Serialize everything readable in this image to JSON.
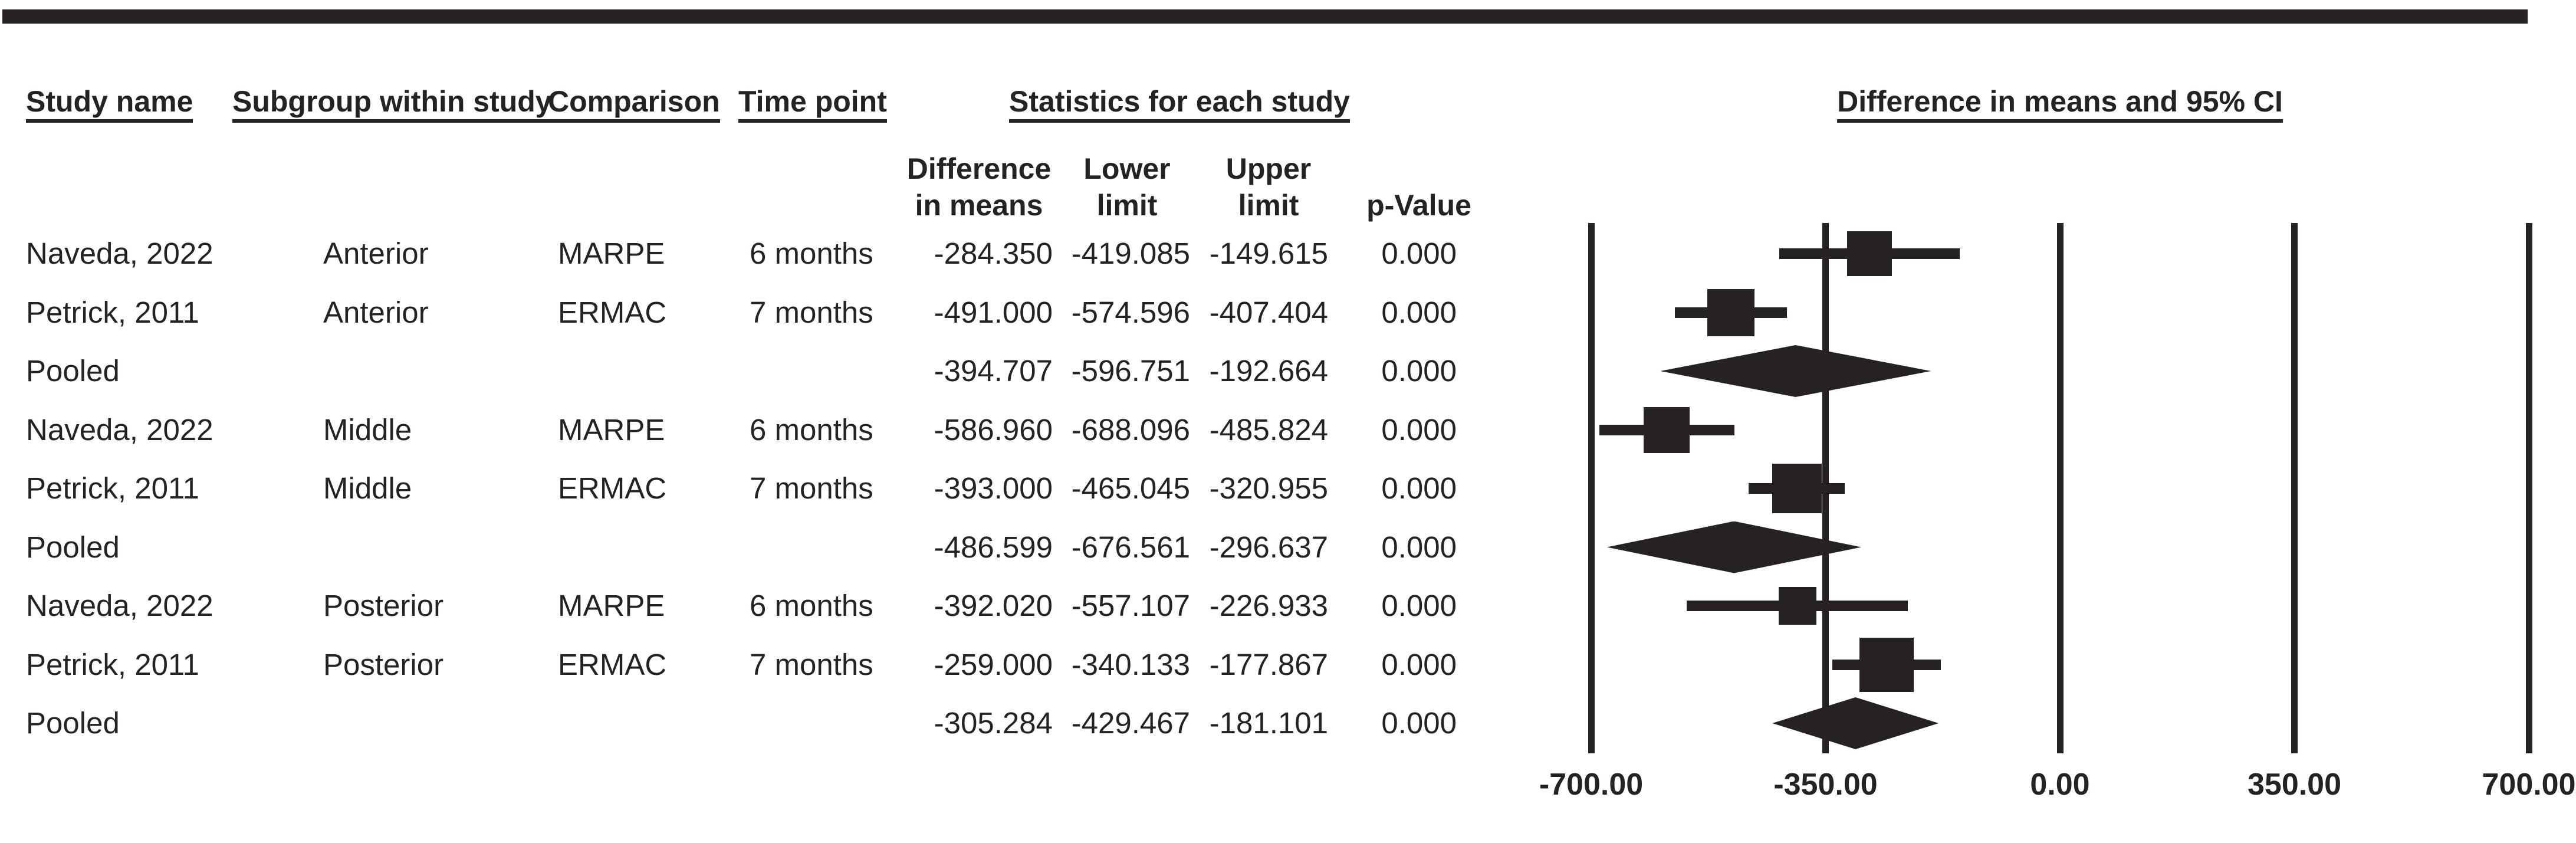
{
  "page": {
    "background": "#ffffff",
    "ink_color": "#262223",
    "top_bar_color": "#272325"
  },
  "chart_data": {
    "type": "forest",
    "title_left_group": "Statistics for each study",
    "title_right_group": "Difference in means and 95% CI",
    "columns": {
      "study": "Study name",
      "subgroup": "Subgroup within study",
      "comparison": "Comparison",
      "time_point": "Time point",
      "diff_line1": "Difference",
      "diff_line2": "in means",
      "lower_line1": "Lower",
      "lower_line2": "limit",
      "upper_line1": "Upper",
      "upper_line2": "limit",
      "p_value": "p-Value"
    },
    "x_axis": {
      "min": -700,
      "max": 700,
      "ticks": [
        -700,
        -350,
        0,
        350,
        700
      ],
      "tick_labels": [
        "-700.00",
        "-350.00",
        "0.00",
        "350.00",
        "700.00"
      ],
      "gridlines": true
    },
    "rows": [
      {
        "type": "study",
        "study": "Naveda, 2022",
        "subgroup": "Anterior",
        "comparison": "MARPE",
        "time_point": "6 months",
        "diff": "-284.350",
        "lower": "-419.085",
        "upper": "-149.615",
        "p": "0.000",
        "marker_size": 76
      },
      {
        "type": "study",
        "study": "Petrick, 2011",
        "subgroup": "Anterior",
        "comparison": "ERMAC",
        "time_point": "7 months",
        "diff": "-491.000",
        "lower": "-574.596",
        "upper": "-407.404",
        "p": "0.000",
        "marker_size": 80
      },
      {
        "type": "pooled",
        "study": "Pooled",
        "subgroup": "",
        "comparison": "",
        "time_point": "",
        "diff": "-394.707",
        "lower": "-596.751",
        "upper": "-192.664",
        "p": "0.000"
      },
      {
        "type": "study",
        "study": "Naveda, 2022",
        "subgroup": "Middle",
        "comparison": "MARPE",
        "time_point": "6 months",
        "diff": "-586.960",
        "lower": "-688.096",
        "upper": "-485.824",
        "p": "0.000",
        "marker_size": 78
      },
      {
        "type": "study",
        "study": "Petrick, 2011",
        "subgroup": "Middle",
        "comparison": "ERMAC",
        "time_point": "7 months",
        "diff": "-393.000",
        "lower": "-465.045",
        "upper": "-320.955",
        "p": "0.000",
        "marker_size": 84
      },
      {
        "type": "pooled",
        "study": "Pooled",
        "subgroup": "",
        "comparison": "",
        "time_point": "",
        "diff": "-486.599",
        "lower": "-676.561",
        "upper": "-296.637",
        "p": "0.000"
      },
      {
        "type": "study",
        "study": "Naveda, 2022",
        "subgroup": "Posterior",
        "comparison": "MARPE",
        "time_point": "6 months",
        "diff": "-392.020",
        "lower": "-557.107",
        "upper": "-226.933",
        "p": "0.000",
        "marker_size": 64
      },
      {
        "type": "study",
        "study": "Petrick, 2011",
        "subgroup": "Posterior",
        "comparison": "ERMAC",
        "time_point": "7 months",
        "diff": "-259.000",
        "lower": "-340.133",
        "upper": "-177.867",
        "p": "0.000",
        "marker_size": 92
      },
      {
        "type": "pooled",
        "study": "Pooled",
        "subgroup": "",
        "comparison": "",
        "time_point": "",
        "diff": "-305.284",
        "lower": "-429.467",
        "upper": "-181.101",
        "p": "0.000"
      }
    ]
  }
}
